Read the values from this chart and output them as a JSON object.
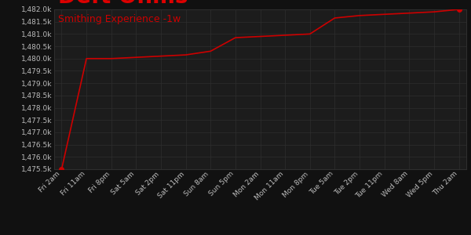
{
  "subtitle": "Smithing Experience -1w",
  "bg_color": "#111111",
  "plot_bg_color": "#1c1c1c",
  "line_color": "#cc0000",
  "title_color": "#dd0000",
  "subtitle_color": "#cc0000",
  "grid_color": "#2e2e2e",
  "x_labels": [
    "Fri 2am",
    "Fri 11am",
    "Fri 8pm",
    "Sat 5am",
    "Sat 2pm",
    "Sat 11pm",
    "Sun 8am",
    "Sun 5pm",
    "Mon 2am",
    "Mon 11am",
    "Mon 8pm",
    "Tue 5am",
    "Tue 2pm",
    "Tue 11pm",
    "Wed 8am",
    "Wed 5pm",
    "Thu 2am"
  ],
  "y_values": [
    1475.5,
    1480.0,
    1480.0,
    1480.05,
    1480.1,
    1480.15,
    1480.3,
    1480.85,
    1480.9,
    1480.95,
    1481.0,
    1481.65,
    1481.75,
    1481.8,
    1481.85,
    1481.9,
    1482.0
  ],
  "ylim": [
    1475.5,
    1482.0
  ],
  "yticks": [
    1475.5,
    1476.0,
    1476.5,
    1477.0,
    1477.5,
    1478.0,
    1478.5,
    1479.0,
    1479.5,
    1480.0,
    1480.5,
    1481.0,
    1481.5,
    1482.0
  ],
  "marker_color": "#cc0000",
  "marker_size": 4,
  "title_fontsize": 20,
  "subtitle_fontsize": 9,
  "tick_fontsize": 6.5,
  "axis_label_color": "#bbbbbb"
}
